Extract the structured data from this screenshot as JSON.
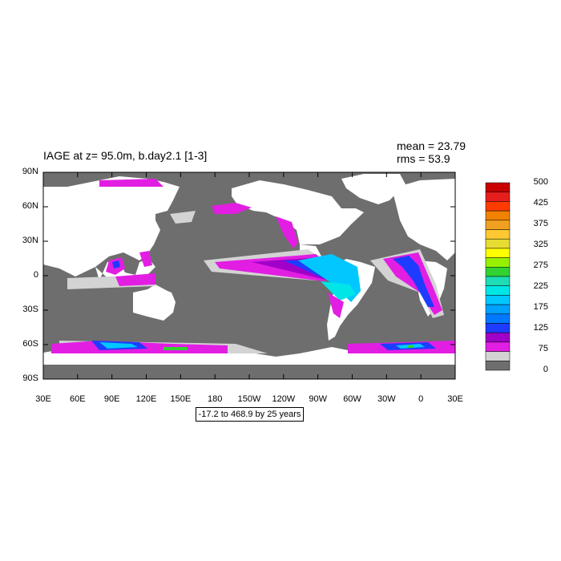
{
  "header": {
    "title": "IAGE at z=  95.0m, b.day2.1 [1-3]",
    "mean": "mean = 23.79",
    "rms": "rms = 53.9"
  },
  "map": {
    "lat_labels": [
      "90N",
      "60N",
      "30N",
      "0",
      "30S",
      "60S",
      "90S"
    ],
    "lon_labels": [
      "30E",
      "60E",
      "90E",
      "120E",
      "150E",
      "180",
      "150W",
      "120W",
      "90W",
      "60W",
      "30W",
      "0",
      "30E"
    ],
    "range_text": "-17.2 to 468.9 by 25 years",
    "colors": {
      "land": "#ffffff",
      "ocean_low": "#6e6e6e",
      "band_25_50": "#d3d3d3",
      "band_50_75": "#e21ee2",
      "band_75_100": "#a000c8",
      "band_100_125": "#1e3cff",
      "band_125_150": "#0078ff",
      "band_150_175": "#00a0ff",
      "band_175_200": "#00c8ff",
      "band_200_225": "#00e6e6",
      "band_225_250": "#1edcb4",
      "band_250_275": "#32d232"
    }
  },
  "colorbar": {
    "labels": [
      "500",
      "425",
      "375",
      "325",
      "275",
      "225",
      "175",
      "125",
      "75",
      "0"
    ],
    "colors": [
      "#c80000",
      "#e61e1e",
      "#ff3c00",
      "#f08200",
      "#f0a020",
      "#ffc832",
      "#e6dc32",
      "#ffff00",
      "#96f000",
      "#32d232",
      "#1edcb4",
      "#00e6e6",
      "#00c8ff",
      "#00a0ff",
      "#0078ff",
      "#1e3cff",
      "#a000c8",
      "#e21ee2",
      "#d3d3d3",
      "#6e6e6e"
    ]
  }
}
